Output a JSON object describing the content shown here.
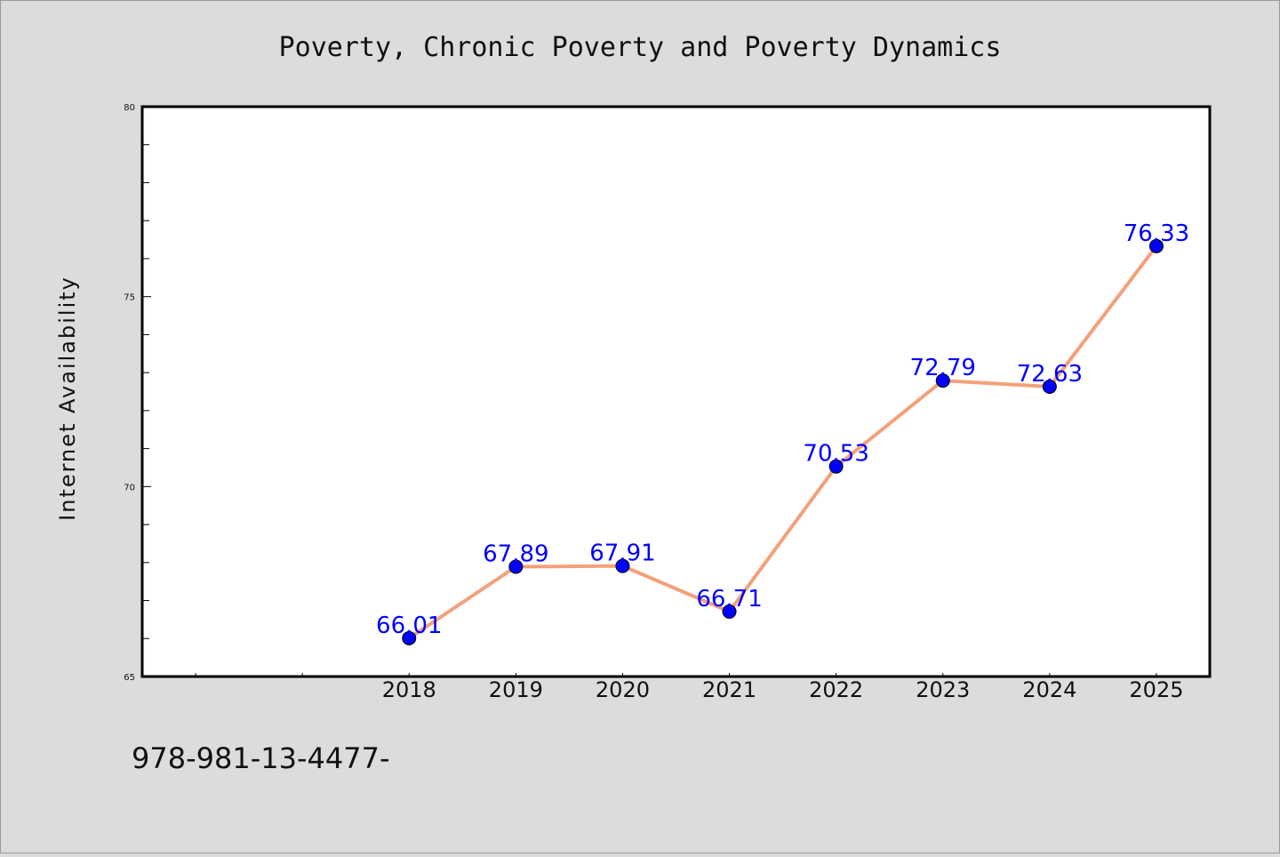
{
  "chart_data": {
    "type": "line",
    "title": "Poverty, Chronic Poverty and Poverty Dynamics",
    "xlabel": "",
    "ylabel": "Internet Availability",
    "x": [
      "2018",
      "2019",
      "2020",
      "2021",
      "2022",
      "2023",
      "2024",
      "2025"
    ],
    "series": [
      {
        "values": [
          66.01,
          67.89,
          67.91,
          66.71,
          70.53,
          72.79,
          72.63,
          76.33
        ],
        "labels": [
          "66.01",
          "67.89",
          "67.91",
          "66.71",
          "70.53",
          "72.79",
          "72.63",
          "76.33"
        ],
        "line_color": "#f4a07a",
        "marker_color": "#0000ff"
      }
    ],
    "ylim": [
      65,
      80
    ],
    "yticks": [
      "65",
      "70",
      "75",
      "80"
    ],
    "grid": false,
    "legend": "none",
    "label_color": "#0000ff"
  },
  "footer_text": "978-981-13-4477-"
}
